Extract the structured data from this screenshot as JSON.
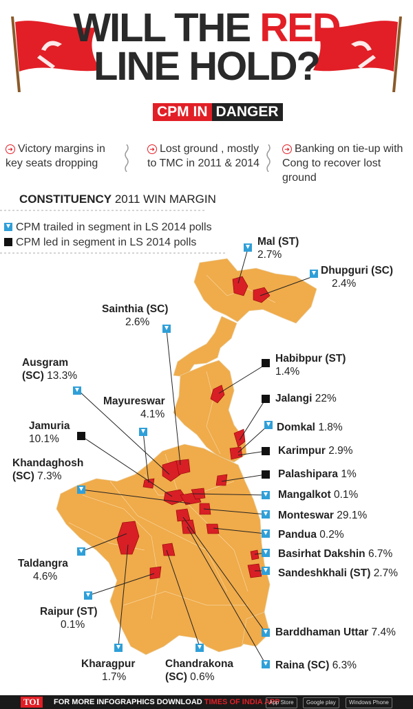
{
  "title": {
    "line1_a": "WILL THE ",
    "line1_b": "RED",
    "line2": "LINE HOLD?"
  },
  "badge": {
    "a": "CPM IN",
    "b": "DANGER"
  },
  "bullets": [
    {
      "line1": "Victory margins in",
      "line2": "key seats dropping"
    },
    {
      "line1": "Lost ground , mostly",
      "line2": "to TMC in 2011 & 2014"
    },
    {
      "line1": "Banking on tie-up with",
      "line2": "Cong to recover lost ground"
    }
  ],
  "header": {
    "bold": "CONSTITUENCY",
    "rest": " 2011 WIN MARGIN"
  },
  "legend": {
    "trailed": "CPM trailed in segment in LS 2014 polls",
    "led": "CPM led in segment in LS 2014 polls"
  },
  "colors": {
    "accent": "#e21f26",
    "map": "#f0ab4a",
    "seat": "#d81f26",
    "trailed": "#2f9fd8",
    "led": "#111111"
  },
  "constituencies": [
    {
      "name": "Mal (ST)",
      "margin": "2.7%",
      "status": "trailed"
    },
    {
      "name": "Dhupguri (SC)",
      "margin": "2.4%",
      "status": "trailed"
    },
    {
      "name": "Sainthia (SC)",
      "margin": "2.6%",
      "status": "trailed"
    },
    {
      "name": "Habibpur (ST)",
      "margin": "1.4%",
      "status": "led"
    },
    {
      "name": "Ausgram",
      "name2": "(SC)",
      "margin": "13.3%",
      "status": "trailed"
    },
    {
      "name": "Jalangi",
      "margin": "22%",
      "status": "led"
    },
    {
      "name": "Mayureswar",
      "margin": "4.1%",
      "status": "trailed"
    },
    {
      "name": "Domkal",
      "margin": "1.8%",
      "status": "trailed"
    },
    {
      "name": "Jamuria",
      "margin": "10.1%",
      "status": "led"
    },
    {
      "name": "Karimpur",
      "margin": "2.9%",
      "status": "led"
    },
    {
      "name": "Khandaghosh",
      "name2": "(SC)",
      "margin": "7.3%",
      "status": "trailed"
    },
    {
      "name": "Palashipara",
      "margin": "1%",
      "status": "led"
    },
    {
      "name": "Mangalkot",
      "margin": "0.1%",
      "status": "trailed"
    },
    {
      "name": "Monteswar",
      "margin": "29.1%",
      "status": "trailed"
    },
    {
      "name": "Pandua",
      "margin": "0.2%",
      "status": "trailed"
    },
    {
      "name": "Basirhat Dakshin",
      "margin": "6.7%",
      "status": "trailed"
    },
    {
      "name": "Taldangra",
      "margin": "4.6%",
      "status": "trailed"
    },
    {
      "name": "Sandeshkhali (ST)",
      "margin": "2.7%",
      "status": "trailed"
    },
    {
      "name": "Raipur (ST)",
      "margin": "0.1%",
      "status": "trailed"
    },
    {
      "name": "Barddhaman Uttar",
      "margin": "7.4%",
      "status": "trailed"
    },
    {
      "name": "Kharagpur",
      "margin": "1.7%",
      "status": "trailed"
    },
    {
      "name": "Chandrakona",
      "name2": "(SC)",
      "margin": "0.6%",
      "status": "trailed"
    },
    {
      "name": "Raina (SC)",
      "margin": "6.3%",
      "status": "trailed"
    }
  ],
  "footer": {
    "brand": "TOI",
    "text_a": "FOR MORE  INFOGRAPHICS DOWNLOAD ",
    "text_b": "TIMES OF INDIA APP",
    "store1": "App Store",
    "store2": "Google play",
    "store3": "Windows Phone"
  }
}
